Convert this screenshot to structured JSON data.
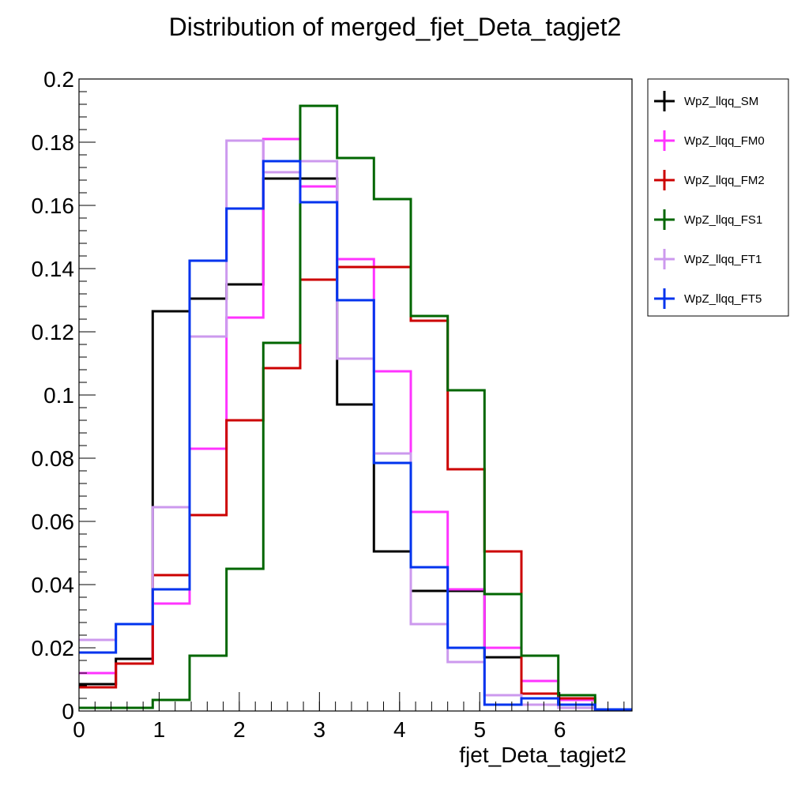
{
  "chart_data": {
    "type": "histogram",
    "title": "Distribution of merged_fjet_Deta_tagjet2",
    "xlabel": "fjet_Deta_tagjet2",
    "ylabel": "",
    "xlim": [
      0,
      6.9
    ],
    "ylim": [
      0,
      0.2
    ],
    "bin_edges": [
      0,
      0.46,
      0.92,
      1.38,
      1.84,
      2.3,
      2.76,
      3.22,
      3.68,
      4.14,
      4.6,
      5.06,
      5.52,
      5.98,
      6.44,
      6.9
    ],
    "x_ticks": [
      "0",
      "1",
      "2",
      "3",
      "4",
      "5",
      "6"
    ],
    "y_ticks": [
      "0",
      "0.02",
      "0.04",
      "0.06",
      "0.08",
      "0.1",
      "0.12",
      "0.14",
      "0.16",
      "0.18",
      "0.2"
    ],
    "legend_position": "top-right, outside plot",
    "grid": false,
    "series": [
      {
        "name": "WpZ_llqq_SM",
        "color": "#000000",
        "values": [
          0.0085,
          0.0165,
          0.1265,
          0.1305,
          0.135,
          0.1685,
          0.1685,
          0.097,
          0.0505,
          0.038,
          0.038,
          0.017,
          0.004,
          0.002,
          0.0005
        ]
      },
      {
        "name": "WpZ_llqq_FM0",
        "color": "#ff33ff",
        "values": [
          0.012,
          0.015,
          0.034,
          0.083,
          0.1245,
          0.181,
          0.166,
          0.143,
          0.1075,
          0.063,
          0.0385,
          0.02,
          0.0095,
          0.0035,
          0.0005
        ]
      },
      {
        "name": "WpZ_llqq_FM2",
        "color": "#cc0000",
        "values": [
          0.0075,
          0.015,
          0.043,
          0.062,
          0.092,
          0.1085,
          0.1365,
          0.1405,
          0.1405,
          0.1235,
          0.0765,
          0.0505,
          0.0055,
          0.004,
          0.0005
        ]
      },
      {
        "name": "WpZ_llqq_FS1",
        "color": "#006600",
        "values": [
          0.001,
          0.001,
          0.0035,
          0.0175,
          0.045,
          0.1165,
          0.1915,
          0.175,
          0.162,
          0.125,
          0.1015,
          0.037,
          0.0175,
          0.005,
          0.0005
        ]
      },
      {
        "name": "WpZ_llqq_FT1",
        "color": "#cc99ee",
        "values": [
          0.0225,
          0.0275,
          0.0645,
          0.1185,
          0.1805,
          0.1705,
          0.174,
          0.1115,
          0.0815,
          0.0275,
          0.0155,
          0.005,
          0.002,
          0.001,
          0.0005
        ]
      },
      {
        "name": "WpZ_llqq_FT5",
        "color": "#0033ee",
        "values": [
          0.0185,
          0.0275,
          0.0385,
          0.1425,
          0.159,
          0.174,
          0.161,
          0.13,
          0.0785,
          0.0455,
          0.02,
          0.002,
          0.004,
          0.002,
          0.0005
        ]
      }
    ]
  }
}
